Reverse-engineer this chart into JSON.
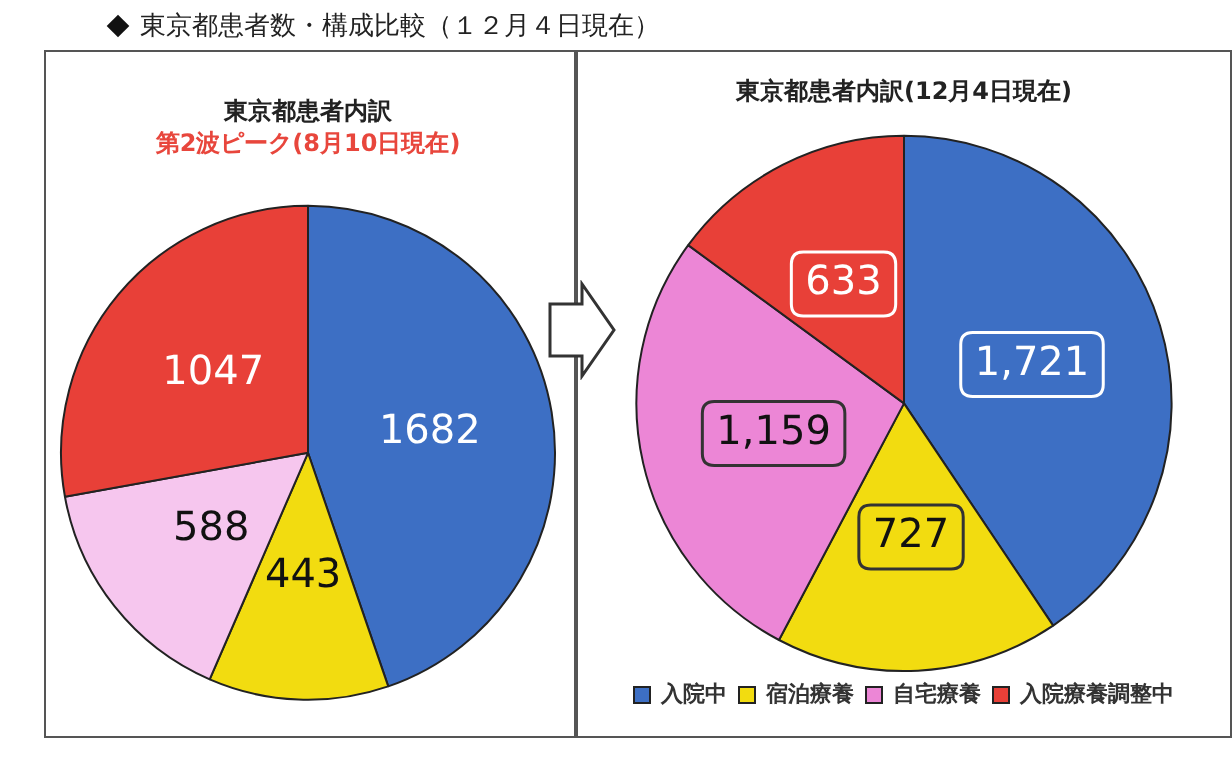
{
  "chart_data": [
    {
      "type": "pie",
      "title": "東京都患者内訳",
      "subtitle": "第2波ピーク(8月10日現在)",
      "annotations": [
        "東京都患者数・構成比較（１２月４日現在）"
      ],
      "categories": [
        null,
        null,
        null,
        null
      ],
      "values": [
        1682,
        443,
        588,
        1047
      ],
      "colors": [
        "#3d6fc4",
        "#f2dc10",
        "#f6c6ee",
        "#e84038"
      ],
      "data_labels": true,
      "legend": false
    },
    {
      "type": "pie",
      "title": "東京都患者内訳(12月4日現在)",
      "categories": [
        "入院中",
        "宿泊療養",
        "自宅療養",
        "入院療養調整中"
      ],
      "values": [
        1721,
        727,
        1159,
        633
      ],
      "value_labels": [
        "1,721",
        "727",
        "1,159",
        "633"
      ],
      "colors": [
        "#3d6fc4",
        "#f2dc10",
        "#ec86d6",
        "#e84038"
      ],
      "legend": "bottom"
    }
  ]
}
